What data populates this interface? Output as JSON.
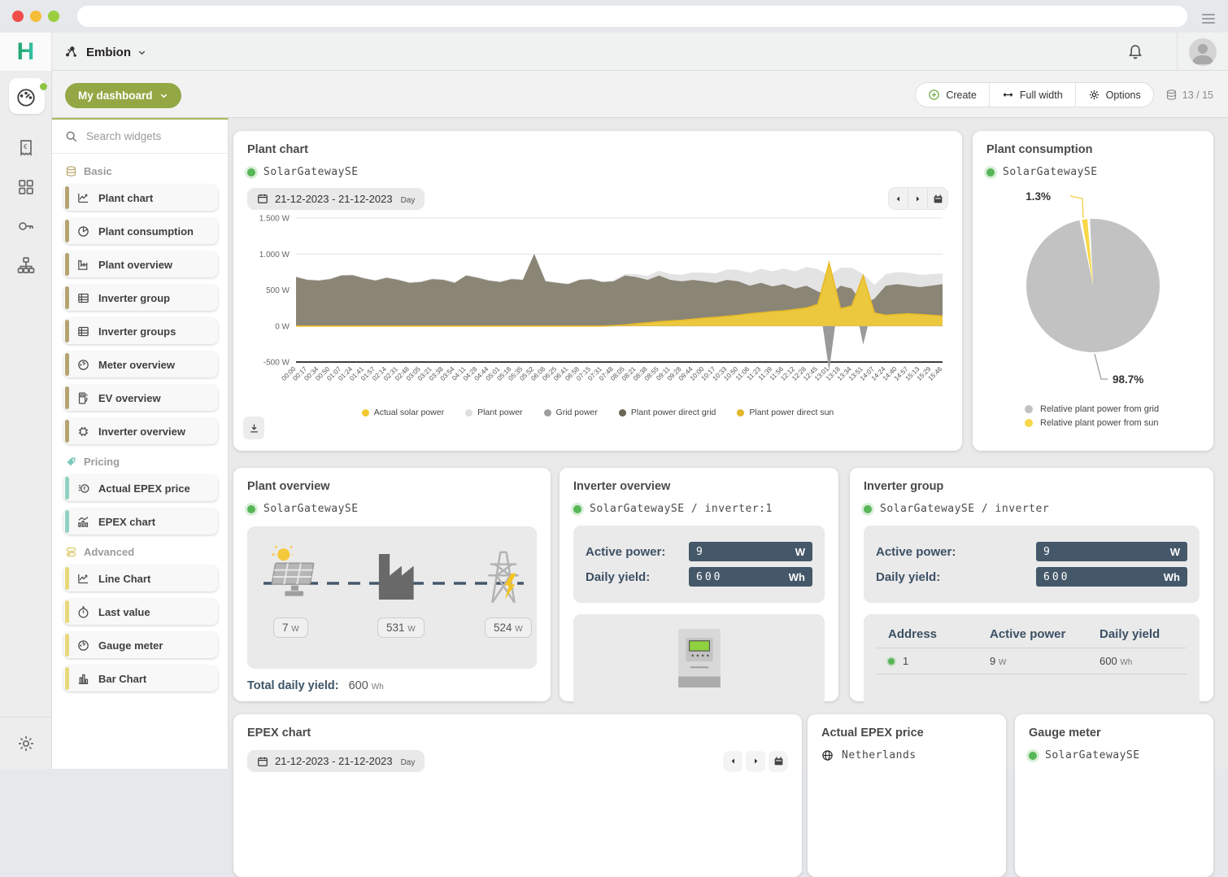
{
  "header": {
    "logo": "H",
    "app_name": "Embion"
  },
  "toolbar": {
    "dashboard_button": "My dashboard",
    "create": "Create",
    "full_width": "Full width",
    "options": "Options",
    "widget_count": "13 / 15"
  },
  "panel": {
    "search_placeholder": "Search widgets",
    "sections": [
      {
        "label": "Basic",
        "items": [
          "Plant chart",
          "Plant consumption",
          "Plant overview",
          "Inverter group",
          "Inverter groups",
          "Meter overview",
          "EV overview",
          "Inverter overview"
        ]
      },
      {
        "label": "Pricing",
        "items": [
          "Actual EPEX price",
          "EPEX chart"
        ]
      },
      {
        "label": "Advanced",
        "items": [
          "Line Chart",
          "Last value",
          "Gauge meter",
          "Bar Chart"
        ]
      }
    ]
  },
  "widgets": {
    "plant_chart": {
      "title": "Plant chart",
      "device": "SolarGatewaySE",
      "date_range": "21-12-2023 - 21-12-2023",
      "granularity": "Day",
      "legend": [
        {
          "label": "Actual solar power",
          "color": "#f2c832"
        },
        {
          "label": "Plant power",
          "color": "#dedede"
        },
        {
          "label": "Grid power",
          "color": "#9e9e9e"
        },
        {
          "label": "Plant power direct grid",
          "color": "#6c6656"
        },
        {
          "label": "Plant power direct sun",
          "color": "#e3b62c"
        }
      ]
    },
    "plant_consumption": {
      "title": "Plant consumption",
      "device": "SolarGatewaySE",
      "sun_pct": "1.3%",
      "grid_pct": "98.7%",
      "legend": [
        {
          "label": "Relative plant power from grid",
          "color": "#c2c2c2"
        },
        {
          "label": "Relative plant power from sun",
          "color": "#f8d84a"
        }
      ]
    },
    "plant_overview": {
      "title": "Plant overview",
      "device": "SolarGatewaySE",
      "solar_value": "7",
      "solar_unit": "W",
      "plant_value": "531",
      "plant_unit": "W",
      "grid_value": "524",
      "grid_unit": "W",
      "total_label": "Total daily yield:",
      "total_value": "600",
      "total_unit": "Wh"
    },
    "inverter_overview": {
      "title": "Inverter overview",
      "device": "SolarGatewaySE / inverter:1",
      "rows": [
        {
          "label": "Active power:",
          "value": "9",
          "unit": "W"
        },
        {
          "label": "Daily yield:",
          "value": "600",
          "unit": "Wh"
        }
      ]
    },
    "inverter_group": {
      "title": "Inverter group",
      "device": "SolarGatewaySE / inverter",
      "rows": [
        {
          "label": "Active power:",
          "value": "9",
          "unit": "W"
        },
        {
          "label": "Daily yield:",
          "value": "600",
          "unit": "Wh"
        }
      ],
      "table": {
        "headers": [
          "Address",
          "Active power",
          "Daily yield"
        ],
        "rows": [
          {
            "address": "1",
            "active_power": "9",
            "ap_unit": "W",
            "daily_yield": "600",
            "dy_unit": "Wh"
          }
        ]
      }
    },
    "epex_chart": {
      "title": "EPEX chart",
      "date_range": "21-12-2023 - 21-12-2023",
      "granularity": "Day"
    },
    "actual_epex_price": {
      "title": "Actual EPEX price",
      "region": "Netherlands"
    },
    "gauge_meter": {
      "title": "Gauge meter",
      "device": "SolarGatewaySE"
    }
  },
  "chart_data": [
    {
      "type": "area",
      "title": "Plant chart",
      "ylabel": "W",
      "ylim": [
        -500,
        1500
      ],
      "yticks": [
        {
          "value": 1500,
          "label": "1.500 W"
        },
        {
          "value": 1000,
          "label": "1.000 W"
        },
        {
          "value": 500,
          "label": "500 W"
        },
        {
          "value": 0,
          "label": "0 W"
        },
        {
          "value": -500,
          "label": "-500 W"
        }
      ],
      "x": [
        "00:00",
        "00:17",
        "00:34",
        "00:50",
        "01:07",
        "01:24",
        "01:41",
        "01:57",
        "02:14",
        "02:31",
        "02:48",
        "03:05",
        "03:21",
        "03:38",
        "03:54",
        "04:11",
        "04:28",
        "04:44",
        "05:01",
        "05:18",
        "05:35",
        "05:52",
        "06:08",
        "06:25",
        "06:41",
        "06:58",
        "07:15",
        "07:31",
        "07:48",
        "08:05",
        "08:21",
        "08:38",
        "08:55",
        "09:11",
        "09:28",
        "09:44",
        "10:00",
        "10:17",
        "10:33",
        "10:50",
        "11:06",
        "11:23",
        "11:39",
        "11:56",
        "12:12",
        "12:28",
        "12:45",
        "13:01",
        "13:18",
        "13:34",
        "13:51",
        "14:07",
        "14:24",
        "14:40",
        "14:57",
        "15:13",
        "15:29",
        "15:46"
      ],
      "series": [
        {
          "name": "Plant power",
          "color": "#e3e3e3",
          "values": [
            690,
            650,
            640,
            660,
            710,
            715,
            670,
            640,
            680,
            650,
            610,
            620,
            660,
            650,
            610,
            710,
            680,
            640,
            620,
            660,
            650,
            1005,
            630,
            610,
            590,
            650,
            660,
            620,
            635,
            725,
            720,
            695,
            770,
            720,
            710,
            745,
            740,
            730,
            785,
            780,
            740,
            795,
            760,
            800,
            760,
            820,
            790,
            700,
            810,
            810,
            720,
            570,
            720,
            750,
            740,
            710,
            720,
            730
          ]
        },
        {
          "name": "Grid power",
          "color": "#9a9a9a",
          "values": [
            680,
            640,
            630,
            650,
            700,
            705,
            660,
            630,
            670,
            640,
            600,
            610,
            650,
            640,
            600,
            700,
            670,
            630,
            610,
            650,
            640,
            1000,
            620,
            600,
            580,
            640,
            650,
            610,
            620,
            700,
            680,
            640,
            700,
            640,
            620,
            640,
            620,
            600,
            640,
            620,
            560,
            600,
            550,
            580,
            520,
            560,
            480,
            -620,
            560,
            520,
            -260,
            380,
            560,
            580,
            560,
            540,
            560,
            580
          ]
        },
        {
          "name": "Plant power direct grid",
          "color": "#8b8576",
          "values": [
            680,
            640,
            630,
            650,
            700,
            705,
            660,
            630,
            670,
            640,
            600,
            610,
            650,
            640,
            600,
            700,
            670,
            630,
            610,
            650,
            640,
            1000,
            620,
            600,
            580,
            640,
            650,
            610,
            620,
            700,
            680,
            640,
            700,
            640,
            620,
            640,
            620,
            600,
            640,
            620,
            560,
            600,
            550,
            580,
            520,
            560,
            480,
            420,
            560,
            520,
            300,
            380,
            560,
            580,
            560,
            540,
            560,
            580
          ]
        },
        {
          "name": "Plant power direct sun",
          "color": "#ecc83f",
          "values": [
            0,
            0,
            0,
            0,
            0,
            0,
            0,
            0,
            0,
            0,
            0,
            0,
            0,
            0,
            0,
            0,
            0,
            0,
            0,
            0,
            0,
            0,
            0,
            0,
            0,
            0,
            0,
            0,
            5,
            15,
            30,
            45,
            60,
            70,
            80,
            95,
            110,
            120,
            135,
            150,
            170,
            185,
            200,
            210,
            230,
            250,
            300,
            880,
            240,
            280,
            700,
            180,
            150,
            160,
            170,
            160,
            150,
            140
          ]
        },
        {
          "name": "Actual solar power",
          "color": "#e7bb27",
          "values": [
            0,
            0,
            0,
            0,
            0,
            0,
            0,
            0,
            0,
            0,
            0,
            0,
            0,
            0,
            0,
            0,
            0,
            0,
            0,
            0,
            0,
            0,
            0,
            0,
            0,
            0,
            0,
            0,
            5,
            15,
            30,
            45,
            60,
            70,
            80,
            95,
            110,
            120,
            135,
            150,
            170,
            185,
            200,
            210,
            230,
            250,
            300,
            880,
            240,
            280,
            700,
            180,
            150,
            160,
            170,
            160,
            150,
            140
          ]
        }
      ]
    },
    {
      "type": "pie",
      "title": "Plant consumption",
      "labels": [
        "Relative plant power from grid",
        "Relative plant power from sun"
      ],
      "values": [
        98.7,
        1.3
      ],
      "colors": [
        "#c2c2c2",
        "#f8d84a"
      ],
      "legend_position": "bottom"
    }
  ]
}
